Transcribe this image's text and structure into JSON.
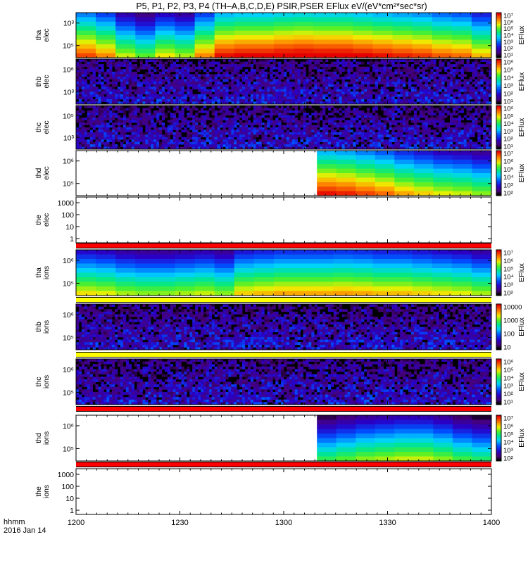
{
  "title": "P5, P1, P2, P3, P4 (TH–A,B,C,D,E) PSIR,PSER EFlux eV/(eV*cm²*sec*sr)",
  "colorbar_label": "EFlux",
  "x_axis": {
    "label_line1": "hhmm",
    "label_line2": "2016 Jan 14",
    "ticks": [
      "1200",
      "1230",
      "1300",
      "1330",
      "1400"
    ]
  },
  "chart_data": [
    {
      "type": "heatmap",
      "panel": "tha-elec",
      "ylabel": [
        "tha",
        "elec"
      ],
      "yticks": [
        "10³",
        "10⁵"
      ],
      "cbar_ticks": [
        "10¹",
        "10²",
        "10³",
        "10⁴",
        "10⁵",
        "10⁶",
        "10⁷"
      ],
      "data_start_fraction": 0.0,
      "mean_levels_by_time": [
        0.62,
        0.55,
        0.42,
        0.35,
        0.45,
        0.4,
        0.55,
        0.68,
        0.7,
        0.7,
        0.72,
        0.73,
        0.72,
        0.72,
        0.7,
        0.68,
        0.66,
        0.64,
        0.6,
        0.58,
        0.5
      ]
    },
    {
      "type": "heatmap",
      "panel": "thb-elec",
      "ylabel": [
        "thb",
        "elec"
      ],
      "yticks": [
        "10⁶",
        "10³"
      ],
      "cbar_ticks": [
        "10¹",
        "10²",
        "10³",
        "10⁴",
        "10⁵",
        "10⁶"
      ],
      "data_start_fraction": 0.0,
      "noise": true
    },
    {
      "type": "heatmap",
      "panel": "thc-elec",
      "ylabel": [
        "thc",
        "elec"
      ],
      "yticks": [
        "10⁵",
        "10³"
      ],
      "cbar_ticks": [
        "10¹",
        "10²",
        "10³",
        "10⁴",
        "10⁵",
        "10⁶"
      ],
      "data_start_fraction": 0.0,
      "noise": true
    },
    {
      "type": "heatmap",
      "panel": "thd-elec",
      "ylabel": [
        "thd",
        "elec"
      ],
      "yticks": [
        "10⁶",
        "10⁵"
      ],
      "cbar_ticks": [
        "10²",
        "10³",
        "10⁴",
        "10⁵",
        "10⁶",
        "10⁷"
      ],
      "data_start_fraction": 0.58,
      "mean_levels_by_time": [
        0.68,
        0.66,
        0.62,
        0.58,
        0.52,
        0.48,
        0.44,
        0.42,
        0.38
      ]
    },
    {
      "type": "line",
      "panel": "the-elec",
      "ylabel": [
        "the",
        "elec"
      ],
      "yticks": [
        "1000",
        "100",
        "10",
        "1"
      ],
      "empty": true
    },
    {
      "type": "heatmap",
      "panel": "tha-ions",
      "ylabel": [
        "tha",
        "ions"
      ],
      "yticks": [
        "10⁶",
        "10⁵"
      ],
      "cbar_ticks": [
        "10²",
        "10³",
        "10⁴",
        "10⁵",
        "10⁶",
        "10⁷"
      ],
      "data_start_fraction": 0.0,
      "mean_levels_by_time": [
        0.46,
        0.44,
        0.4,
        0.38,
        0.38,
        0.4,
        0.42,
        0.38,
        0.48,
        0.5,
        0.52,
        0.52,
        0.52,
        0.53,
        0.52,
        0.5,
        0.5,
        0.48,
        0.46,
        0.44,
        0.4
      ]
    },
    {
      "type": "heatmap",
      "panel": "thb-ions",
      "ylabel": [
        "thb",
        "ions"
      ],
      "yticks": [
        "10⁶",
        "10⁵"
      ],
      "cbar_ticks": [
        "10",
        "100",
        "1000",
        "10000"
      ],
      "data_start_fraction": 0.0,
      "noise": true
    },
    {
      "type": "heatmap",
      "panel": "thc-ions",
      "ylabel": [
        "thc",
        "ions"
      ],
      "yticks": [
        "10⁶",
        "10⁵"
      ],
      "cbar_ticks": [
        "10¹",
        "10²",
        "10³",
        "10⁴",
        "10⁵",
        "10⁶"
      ],
      "data_start_fraction": 0.0,
      "noise": true
    },
    {
      "type": "heatmap",
      "panel": "thd-ions",
      "ylabel": [
        "thd",
        "ions"
      ],
      "yticks": [
        "10⁶",
        "10⁵"
      ],
      "cbar_ticks": [
        "10²",
        "10³",
        "10⁴",
        "10⁵",
        "10⁶",
        "10⁷"
      ],
      "data_start_fraction": 0.58,
      "mean_levels_by_time": [
        0.3,
        0.34,
        0.38,
        0.4,
        0.42,
        0.42,
        0.38,
        0.32,
        0.28
      ]
    },
    {
      "type": "line",
      "panel": "the-ions",
      "ylabel": [
        "the",
        "ions"
      ],
      "yticks": [
        "1000",
        "100",
        "10",
        "1"
      ],
      "empty": true
    }
  ]
}
